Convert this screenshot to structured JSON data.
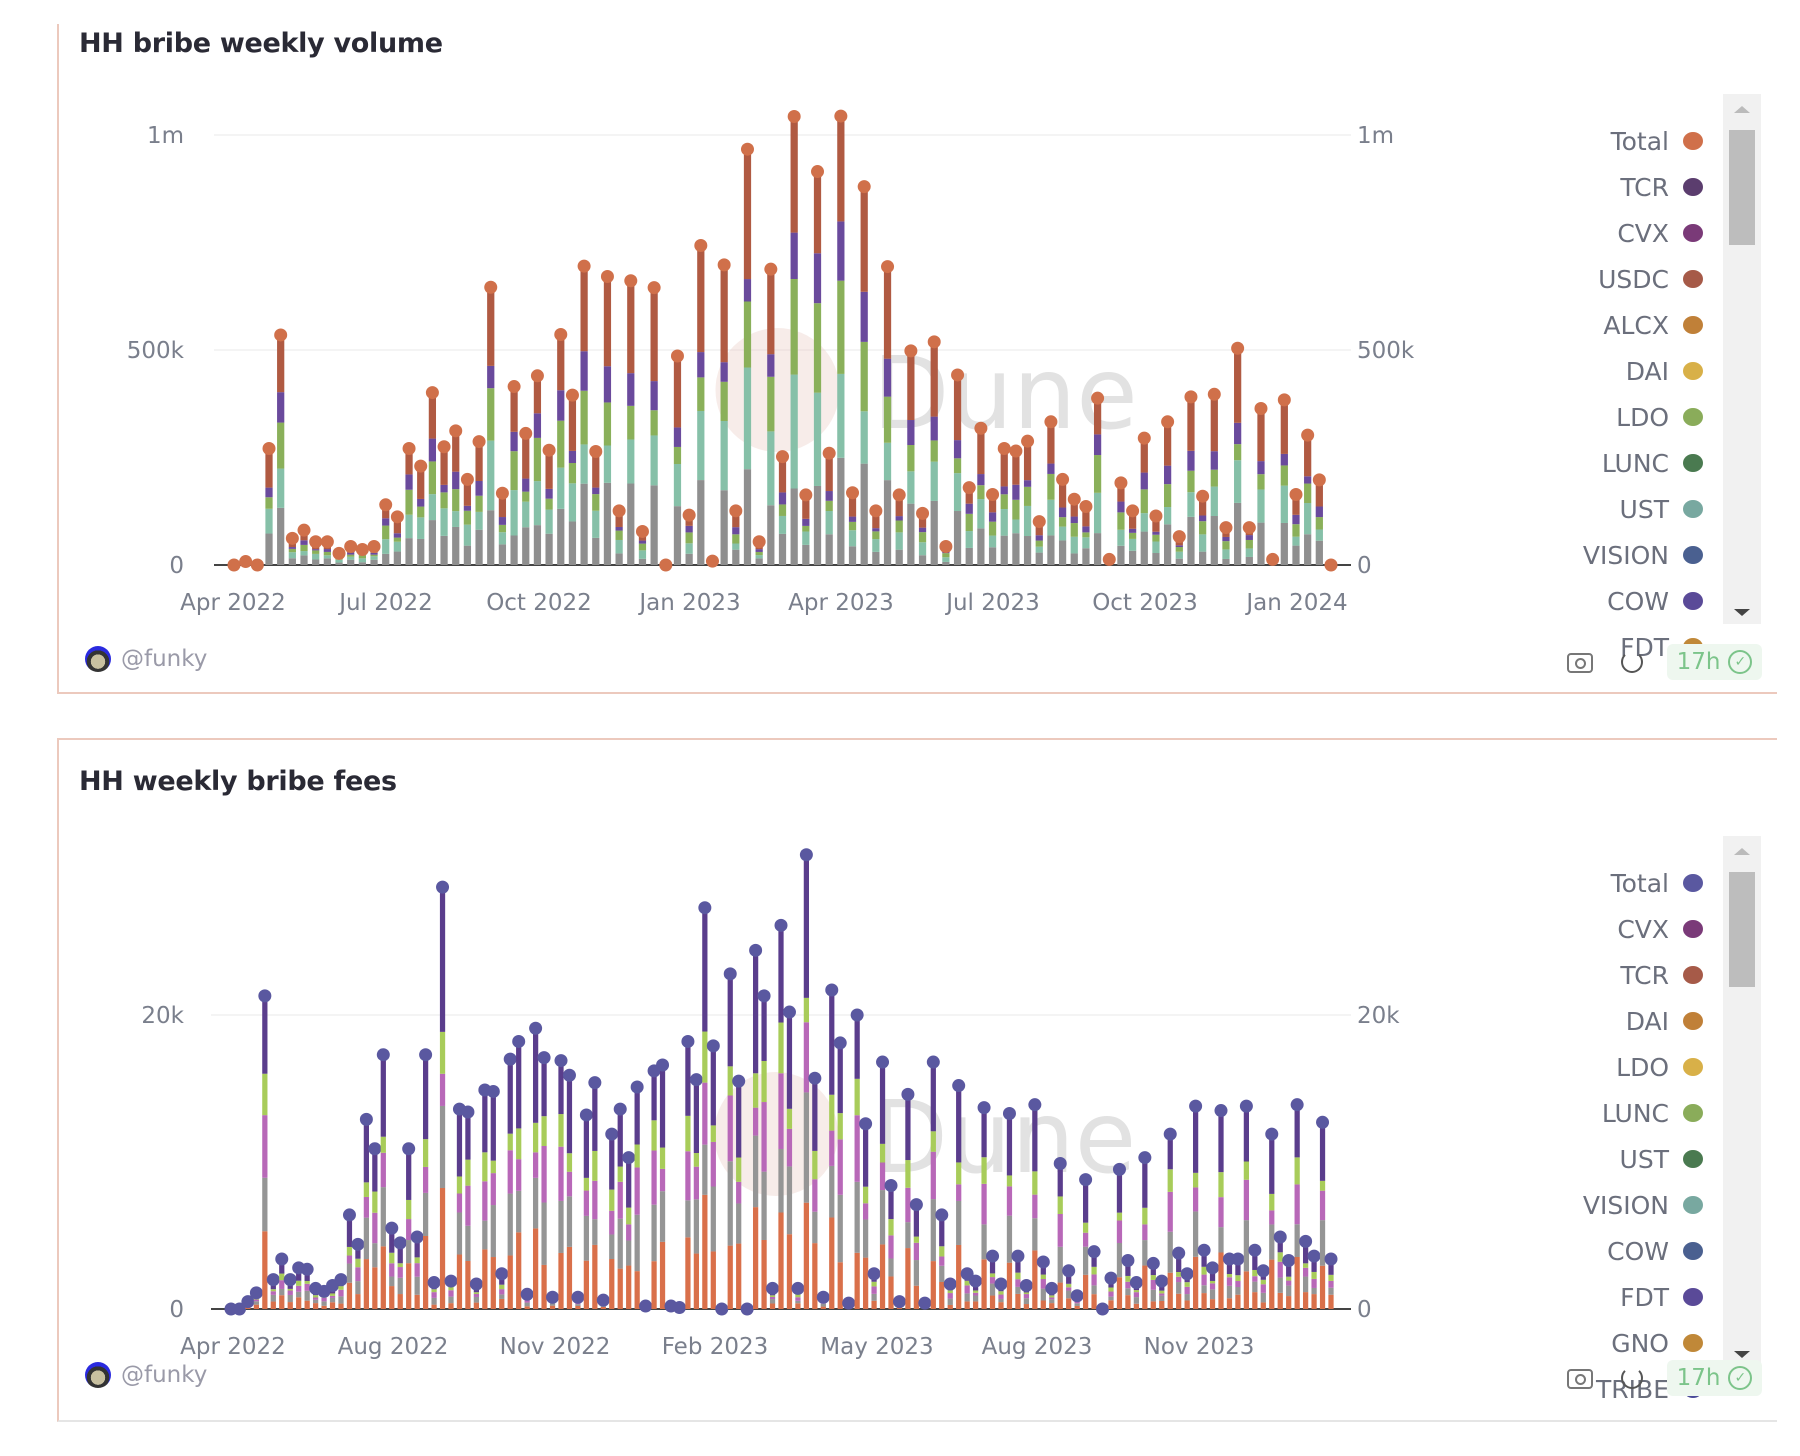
{
  "panels": [
    {
      "title": "HH bribe weekly volume",
      "author": "@funky",
      "freshness": "17h",
      "legend": [
        {
          "label": "Total",
          "color": "#d0704a"
        },
        {
          "label": "TCR",
          "color": "#5b3d6e"
        },
        {
          "label": "CVX",
          "color": "#7a3a78"
        },
        {
          "label": "USDC",
          "color": "#a65a48"
        },
        {
          "label": "ALCX",
          "color": "#c08038"
        },
        {
          "label": "DAI",
          "color": "#d8b048"
        },
        {
          "label": "LDO",
          "color": "#8aac5a"
        },
        {
          "label": "LUNC",
          "color": "#4a7a50"
        },
        {
          "label": "UST",
          "color": "#78a8a0"
        },
        {
          "label": "VISION",
          "color": "#4a6090"
        },
        {
          "label": "COW",
          "color": "#5a4a98"
        },
        {
          "label": "FDT",
          "color": "#c08838"
        }
      ]
    },
    {
      "title": "HH weekly bribe fees",
      "author": "@funky",
      "freshness": "17h",
      "legend": [
        {
          "label": "Total",
          "color": "#5a58a0"
        },
        {
          "label": "CVX",
          "color": "#7a3a78"
        },
        {
          "label": "TCR",
          "color": "#a65a48"
        },
        {
          "label": "DAI",
          "color": "#c08038"
        },
        {
          "label": "LDO",
          "color": "#d8b048"
        },
        {
          "label": "LUNC",
          "color": "#8aac5a"
        },
        {
          "label": "UST",
          "color": "#4a7a50"
        },
        {
          "label": "VISION",
          "color": "#78a8a0"
        },
        {
          "label": "COW",
          "color": "#4a6090"
        },
        {
          "label": "FDT",
          "color": "#5a4a98"
        },
        {
          "label": "GNO",
          "color": "#c08838"
        },
        {
          "label": "TRIBE",
          "color": "#4a4a98"
        }
      ]
    }
  ],
  "watermark": "Dune",
  "chart_data": [
    {
      "type": "bar",
      "stacked": true,
      "title": "HH bribe weekly volume",
      "ylim": [
        0,
        1000000
      ],
      "y_ticks": [
        "0",
        "500k",
        "1m"
      ],
      "y_tick_values": [
        0,
        500000,
        1000000
      ],
      "x_ticks": [
        "Apr 2022",
        "Jul 2022",
        "Oct 2022",
        "Jan 2023",
        "Apr 2023",
        "Jul 2023",
        "Oct 2023",
        "Jan 2024"
      ],
      "grid": true,
      "legend_position": "right",
      "total_series": "Total",
      "total_values": [
        0,
        8000,
        0,
        271000,
        535000,
        62000,
        81000,
        54000,
        54000,
        27000,
        43000,
        36000,
        43000,
        140000,
        112000,
        271000,
        230000,
        401000,
        275000,
        312000,
        199000,
        287000,
        646000,
        167000,
        415000,
        306000,
        440000,
        267000,
        536000,
        395000,
        695000,
        264000,
        671000,
        126000,
        661000,
        78000,
        645000,
        0,
        486000,
        116000,
        743000,
        9000,
        698000,
        126000,
        967000,
        54000,
        688000,
        252000,
        1043000,
        163000,
        915000,
        260000,
        1044000,
        168000,
        880000,
        126000,
        694000,
        163000,
        498000,
        120000,
        519000,
        43000,
        442000,
        180000,
        318000,
        164000,
        271000,
        265000,
        288000,
        101000,
        333000,
        199000,
        153000,
        136000,
        388000,
        13000,
        191000,
        126000,
        295000,
        114000,
        333000,
        66000,
        391000,
        160000,
        397000,
        87000,
        504000,
        87000,
        364000,
        13000,
        384000,
        164000,
        302000,
        198000,
        0
      ]
    },
    {
      "type": "bar",
      "stacked": true,
      "title": "HH weekly bribe fees",
      "ylim": [
        0,
        31000
      ],
      "y_ticks": [
        "0",
        "20k"
      ],
      "y_tick_values": [
        0,
        20000
      ],
      "x_ticks": [
        "Apr 2022",
        "Aug 2022",
        "Nov 2022",
        "Feb 2023",
        "May 2023",
        "Aug 2023",
        "Nov 2023"
      ],
      "grid": true,
      "legend_position": "right",
      "total_series": "Total",
      "total_values": [
        0,
        0,
        500,
        1100,
        21300,
        2000,
        3400,
        2000,
        2800,
        2700,
        1400,
        1200,
        1600,
        2000,
        6400,
        4400,
        12900,
        10900,
        17300,
        5500,
        4500,
        10900,
        4900,
        17300,
        1800,
        28700,
        1900,
        13600,
        13400,
        1700,
        14900,
        14800,
        2400,
        17000,
        18200,
        1000,
        19100,
        17100,
        800,
        16900,
        15900,
        800,
        13200,
        15400,
        600,
        11900,
        13600,
        10300,
        15100,
        200,
        16200,
        16600,
        200,
        100,
        18200,
        15600,
        27300,
        17900,
        0,
        22800,
        15500,
        0,
        24400,
        21300,
        1400,
        26100,
        20200,
        1400,
        30900,
        15700,
        800,
        21700,
        18100,
        400,
        20000,
        12600,
        2400,
        16800,
        8400,
        500,
        14600,
        7100,
        400,
        16800,
        6400,
        1700,
        15200,
        2400,
        1900,
        13700,
        3600,
        1700,
        13300,
        3600,
        1600,
        13900,
        3200,
        1400,
        9900,
        2600,
        900,
        8800,
        3900,
        0,
        2100,
        9500,
        3300,
        1800,
        10300,
        3100,
        1900,
        11900,
        3800,
        2400,
        13800,
        4000,
        2800,
        13500,
        3400,
        3400,
        13800,
        4000,
        2600,
        11900,
        4900,
        3300,
        13900,
        4600,
        3600,
        12700,
        3400
      ]
    }
  ]
}
